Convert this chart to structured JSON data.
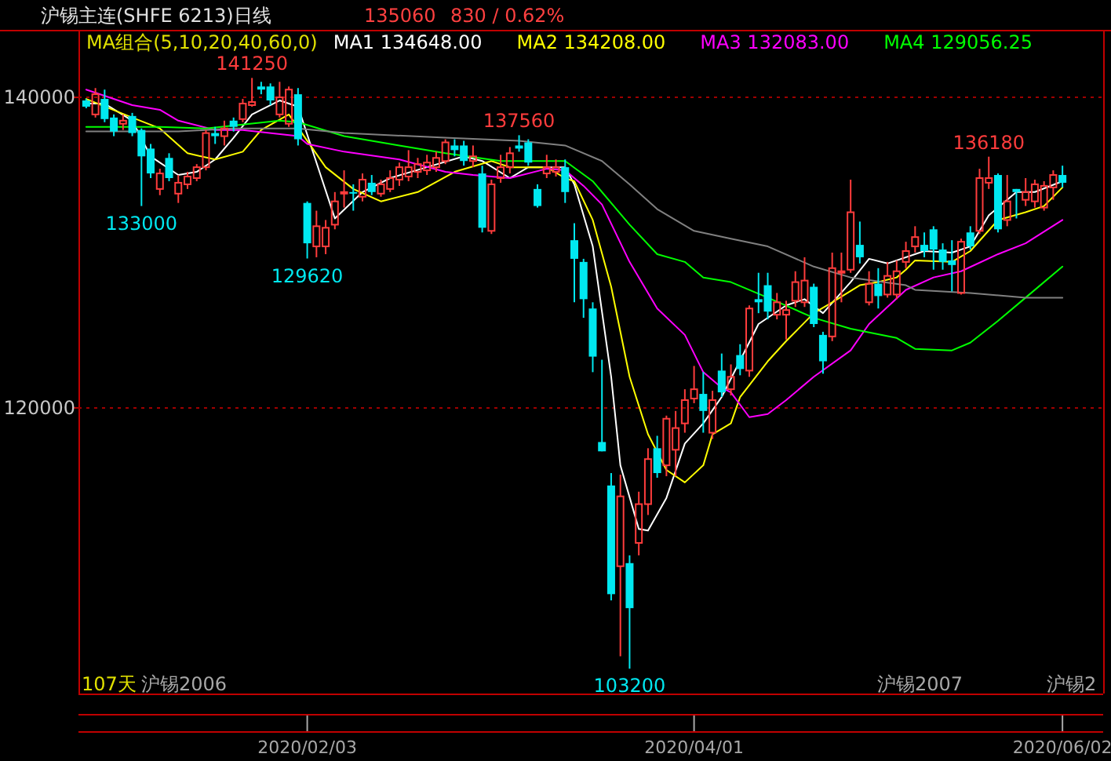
{
  "chart_data": {
    "type": "candlestick",
    "title": "沪锡主连(SHFE 6213)日线",
    "categories": [
      null,
      null,
      null,
      null,
      null,
      null,
      null,
      null,
      null,
      null,
      null,
      null,
      null,
      null,
      null,
      null,
      null,
      null,
      null,
      null,
      null,
      null,
      null,
      null,
      "2020/02/03",
      null,
      null,
      null,
      null,
      null,
      null,
      null,
      null,
      null,
      null,
      null,
      null,
      null,
      null,
      null,
      null,
      null,
      null,
      null,
      null,
      null,
      null,
      null,
      null,
      null,
      null,
      null,
      null,
      null,
      null,
      null,
      null,
      null,
      null,
      null,
      null,
      null,
      null,
      null,
      null,
      null,
      "2020/04/01",
      null,
      null,
      null,
      null,
      null,
      null,
      null,
      null,
      null,
      null,
      null,
      null,
      null,
      null,
      null,
      null,
      null,
      null,
      null,
      null,
      null,
      null,
      null,
      null,
      null,
      null,
      null,
      null,
      null,
      null,
      null,
      null,
      null,
      null,
      null,
      null,
      null,
      null,
      null,
      "2020/06/02"
    ],
    "ohlc": [
      [
        139800,
        139900,
        139300,
        139400
      ],
      [
        138900,
        140600,
        138700,
        140200
      ],
      [
        139900,
        140500,
        138400,
        138600
      ],
      [
        138700,
        138900,
        137500,
        137800
      ],
      [
        138300,
        138900,
        137900,
        138500
      ],
      [
        138800,
        139000,
        137500,
        137700
      ],
      [
        137900,
        138000,
        133000,
        136200
      ],
      [
        136700,
        137000,
        134800,
        135100
      ],
      [
        134100,
        135400,
        133700,
        135100
      ],
      [
        136100,
        136400,
        134600,
        134800
      ],
      [
        133800,
        135000,
        133200,
        134500
      ],
      [
        134400,
        135200,
        134100,
        134900
      ],
      [
        134800,
        135700,
        134600,
        135500
      ],
      [
        135500,
        137900,
        135300,
        137700
      ],
      [
        137700,
        138100,
        137000,
        137500
      ],
      [
        137500,
        138500,
        136900,
        138000
      ],
      [
        138500,
        138700,
        137800,
        138100
      ],
      [
        138600,
        139900,
        138400,
        139600
      ],
      [
        139500,
        141250,
        139400,
        139700
      ],
      [
        140700,
        141000,
        140200,
        140500
      ],
      [
        140700,
        140900,
        139500,
        139800
      ],
      [
        138900,
        141000,
        138700,
        140000
      ],
      [
        138300,
        140700,
        138100,
        140500
      ],
      [
        140200,
        140600,
        136900,
        137300
      ],
      [
        133200,
        133300,
        129620,
        130600
      ],
      [
        130400,
        132700,
        129700,
        131700
      ],
      [
        130400,
        132100,
        129900,
        131600
      ],
      [
        131800,
        133900,
        131500,
        133300
      ],
      [
        133800,
        135300,
        132900,
        133900
      ],
      [
        133900,
        134400,
        132700,
        133800
      ],
      [
        133600,
        135100,
        133300,
        134700
      ],
      [
        134500,
        135000,
        133700,
        133900
      ],
      [
        133800,
        134700,
        133600,
        134400
      ],
      [
        134100,
        135300,
        133900,
        134800
      ],
      [
        134700,
        135800,
        134300,
        135500
      ],
      [
        134900,
        136600,
        134600,
        135500
      ],
      [
        135200,
        136100,
        134800,
        135700
      ],
      [
        135300,
        136300,
        135000,
        135800
      ],
      [
        135500,
        136500,
        135200,
        136100
      ],
      [
        135900,
        137300,
        135700,
        137100
      ],
      [
        136900,
        137300,
        136200,
        136600
      ],
      [
        136900,
        137200,
        135600,
        135900
      ],
      [
        135900,
        136900,
        135500,
        136200
      ],
      [
        135100,
        135600,
        131300,
        131600
      ],
      [
        131400,
        134700,
        131200,
        134400
      ],
      [
        134800,
        136300,
        134500,
        135500
      ],
      [
        135500,
        136800,
        135100,
        136400
      ],
      [
        136900,
        137560,
        136500,
        136700
      ],
      [
        137100,
        137300,
        135600,
        135800
      ],
      [
        134100,
        134400,
        132900,
        133000
      ],
      [
        135100,
        136300,
        134800,
        135500
      ],
      [
        135200,
        136000,
        134900,
        135500
      ],
      [
        135500,
        136000,
        133200,
        133900
      ],
      [
        130800,
        131900,
        126800,
        129600
      ],
      [
        129400,
        129600,
        125800,
        127000
      ],
      [
        126400,
        126800,
        122300,
        123300
      ],
      [
        117800,
        123100,
        117200,
        117200
      ],
      [
        115000,
        115800,
        107600,
        108000
      ],
      [
        109800,
        115700,
        104000,
        114300
      ],
      [
        110000,
        110500,
        103200,
        107100
      ],
      [
        111300,
        114600,
        110500,
        113800
      ],
      [
        113800,
        117400,
        113100,
        116700
      ],
      [
        117400,
        118200,
        115500,
        115800
      ],
      [
        116300,
        119500,
        115600,
        119300
      ],
      [
        117300,
        119800,
        115600,
        118700
      ],
      [
        119000,
        121200,
        118400,
        120500
      ],
      [
        120600,
        122700,
        120300,
        121200
      ],
      [
        120900,
        122300,
        118400,
        119800
      ],
      [
        118400,
        121100,
        118000,
        120500
      ],
      [
        122400,
        123500,
        120700,
        121000
      ],
      [
        121200,
        122800,
        120800,
        122000
      ],
      [
        123400,
        124100,
        122100,
        122500
      ],
      [
        122400,
        126600,
        122000,
        126400
      ],
      [
        127000,
        128700,
        126100,
        126800
      ],
      [
        127900,
        128700,
        125700,
        126200
      ],
      [
        126000,
        127400,
        125700,
        126800
      ],
      [
        126000,
        126900,
        124400,
        126300
      ],
      [
        126900,
        128800,
        126500,
        128100
      ],
      [
        126800,
        129700,
        126500,
        128200
      ],
      [
        127800,
        128000,
        125200,
        125400
      ],
      [
        124700,
        124900,
        122200,
        123000
      ],
      [
        124600,
        130000,
        124300,
        129000
      ],
      [
        128700,
        130000,
        126800,
        128800
      ],
      [
        128900,
        134700,
        128700,
        132600
      ],
      [
        130500,
        132000,
        129300,
        129700
      ],
      [
        126800,
        128800,
        126600,
        128000
      ],
      [
        128000,
        129000,
        126400,
        127200
      ],
      [
        127300,
        129400,
        127100,
        128500
      ],
      [
        127300,
        129500,
        127000,
        128800
      ],
      [
        129400,
        130700,
        129000,
        130100
      ],
      [
        130400,
        131700,
        130000,
        131000
      ],
      [
        130500,
        131300,
        129700,
        130100
      ],
      [
        131500,
        131700,
        128900,
        130200
      ],
      [
        130200,
        130600,
        128900,
        129400
      ],
      [
        129500,
        130800,
        127500,
        129200
      ],
      [
        127400,
        130900,
        127300,
        130700
      ],
      [
        131300,
        131700,
        130200,
        130400
      ],
      [
        131400,
        135400,
        131200,
        134800
      ],
      [
        134500,
        136180,
        134100,
        134800
      ],
      [
        135000,
        135100,
        131300,
        131500
      ],
      [
        132100,
        135000,
        131700,
        133300
      ],
      [
        134100,
        134100,
        132200,
        133900
      ],
      [
        133400,
        134800,
        133000,
        133900
      ],
      [
        133300,
        134700,
        132900,
        134400
      ],
      [
        132900,
        134600,
        132700,
        134300
      ],
      [
        134200,
        135300,
        133400,
        135000
      ],
      [
        135000,
        135600,
        134200,
        134500
      ]
    ],
    "series": [
      {
        "type": "line",
        "name": "MA1 134648.00",
        "color": "#ffffff",
        "values": [
          139600,
          null,
          139600,
          null,
          null,
          138500,
          null,
          136200,
          null,
          null,
          135000,
          null,
          135200,
          null,
          136000,
          null,
          137400,
          null,
          138900,
          null,
          null,
          139800,
          null,
          139400,
          null,
          null,
          null,
          132200,
          null,
          null,
          133900,
          null,
          null,
          134800,
          null,
          null,
          null,
          135500,
          null,
          null,
          null,
          136200,
          null,
          135900,
          null,
          null,
          134800,
          null,
          135500,
          null,
          null,
          null,
          135500,
          134400,
          null,
          130400,
          null,
          122000,
          116300,
          null,
          112200,
          112100,
          null,
          114200,
          null,
          117700,
          null,
          119000,
          null,
          120700,
          null,
          null,
          null,
          125400,
          null,
          null,
          126600,
          null,
          127000,
          null,
          126100,
          null,
          null,
          128100,
          null,
          129600,
          null,
          129300,
          null,
          null,
          null,
          130100,
          null,
          null,
          130000,
          null,
          130400,
          null,
          132400,
          null,
          null,
          133900,
          null,
          133900,
          null,
          null,
          134600
        ]
      },
      {
        "type": "line",
        "name": "MA2 134208.00",
        "color": "#ffff00",
        "values": [
          139900,
          null,
          null,
          null,
          null,
          138700,
          null,
          null,
          138000,
          null,
          null,
          136400,
          null,
          null,
          136000,
          null,
          null,
          136500,
          null,
          137900,
          null,
          null,
          138900,
          null,
          null,
          null,
          135500,
          null,
          null,
          134100,
          null,
          null,
          133300,
          null,
          null,
          null,
          133900,
          null,
          null,
          null,
          135200,
          null,
          null,
          null,
          135900,
          null,
          135500,
          null,
          null,
          null,
          135500,
          null,
          134800,
          134600,
          null,
          132100,
          null,
          127800,
          null,
          122000,
          null,
          118300,
          null,
          116000,
          null,
          115200,
          null,
          116300,
          118300,
          null,
          119000,
          120700,
          null,
          null,
          123000,
          null,
          124300,
          null,
          null,
          126100,
          null,
          126800,
          null,
          null,
          127900,
          null,
          128100,
          null,
          128400,
          128900,
          129500,
          null,
          null,
          null,
          129400,
          null,
          130100,
          null,
          null,
          132100,
          null,
          null,
          132600,
          null,
          133000,
          null,
          134200
        ]
      },
      {
        "type": "line",
        "name": "MA3 132083.00",
        "color": "#ff00ff",
        "values": [
          140500,
          null,
          null,
          null,
          null,
          139500,
          null,
          null,
          139200,
          null,
          138500,
          null,
          null,
          null,
          137900,
          null,
          null,
          137900,
          null,
          null,
          null,
          null,
          null,
          137500,
          137000,
          null,
          null,
          null,
          136500,
          null,
          null,
          null,
          null,
          null,
          136000,
          null,
          null,
          null,
          null,
          135200,
          null,
          null,
          135000,
          null,
          null,
          null,
          134800,
          null,
          null,
          null,
          135400,
          null,
          135300,
          null,
          134300,
          null,
          133100,
          null,
          null,
          129400,
          null,
          null,
          126400,
          null,
          null,
          124700,
          null,
          122300,
          null,
          121300,
          121000,
          null,
          119400,
          null,
          119600,
          null,
          120500,
          null,
          null,
          122000,
          null,
          null,
          null,
          123700,
          null,
          125400,
          null,
          null,
          null,
          127600,
          null,
          null,
          128400,
          null,
          null,
          128800,
          null,
          null,
          null,
          129900,
          null,
          null,
          130600,
          null,
          null,
          null,
          132100
        ]
      },
      {
        "type": "line",
        "name": "MA4 129056.25",
        "color": "#00ff00",
        "values": [
          138100,
          null,
          null,
          null,
          null,
          null,
          null,
          null,
          138100,
          null,
          null,
          null,
          null,
          138000,
          null,
          null,
          null,
          null,
          null,
          null,
          null,
          138500,
          null,
          138400,
          null,
          null,
          null,
          null,
          137500,
          null,
          null,
          null,
          null,
          null,
          136900,
          null,
          null,
          null,
          null,
          136400,
          null,
          null,
          null,
          null,
          null,
          135900,
          null,
          null,
          null,
          null,
          null,
          null,
          135900,
          null,
          null,
          134600,
          null,
          null,
          null,
          131800,
          null,
          null,
          129900,
          null,
          null,
          129400,
          null,
          128400,
          null,
          null,
          128100,
          null,
          null,
          null,
          127100,
          null,
          null,
          null,
          null,
          125800,
          null,
          null,
          null,
          125100,
          null,
          null,
          null,
          null,
          124500,
          null,
          123800,
          null,
          null,
          null,
          123700,
          null,
          124200,
          null,
          null,
          125600,
          null,
          null,
          127100,
          null,
          null,
          null,
          129100
        ]
      },
      {
        "type": "line",
        "color": "#808080",
        "values": [
          137800,
          null,
          null,
          null,
          null,
          null,
          null,
          null,
          null,
          null,
          137800,
          null,
          null,
          null,
          null,
          null,
          138000,
          null,
          null,
          null,
          null,
          null,
          null,
          138000,
          null,
          null,
          null,
          null,
          137700,
          null,
          null,
          null,
          null,
          null,
          null,
          null,
          null,
          null,
          null,
          137400,
          null,
          null,
          null,
          null,
          null,
          null,
          null,
          137200,
          null,
          null,
          null,
          null,
          136900,
          null,
          null,
          null,
          135900,
          null,
          null,
          134400,
          null,
          null,
          132800,
          null,
          null,
          null,
          131400,
          null,
          null,
          null,
          130900,
          null,
          null,
          null,
          130400,
          null,
          null,
          null,
          null,
          129100,
          null,
          null,
          null,
          128400,
          null,
          null,
          null,
          null,
          null,
          127900,
          127600,
          null,
          null,
          null,
          null,
          null,
          127400,
          null,
          null,
          null,
          null,
          null,
          127100,
          null,
          null,
          null,
          127100
        ]
      }
    ],
    "legend_title": "MA组合(5,10,20,40,60,0)",
    "legend": "top",
    "ylim": [
      101600,
      144300
    ],
    "yticks": [
      120000,
      140000
    ],
    "grid": "y",
    "annotations": [
      "135060",
      "830 / 0.62%",
      "107天",
      "沪锡2006",
      "沪锡2007",
      "沪锡2",
      {
        "text": "141250",
        "y": 141250
      },
      {
        "text": "133000",
        "y": 133000
      },
      {
        "text": "129620",
        "y": 129620
      },
      {
        "text": "137560",
        "y": 137560
      },
      {
        "text": "103200",
        "y": 103200
      },
      {
        "text": "136180",
        "y": 136180
      }
    ]
  }
}
